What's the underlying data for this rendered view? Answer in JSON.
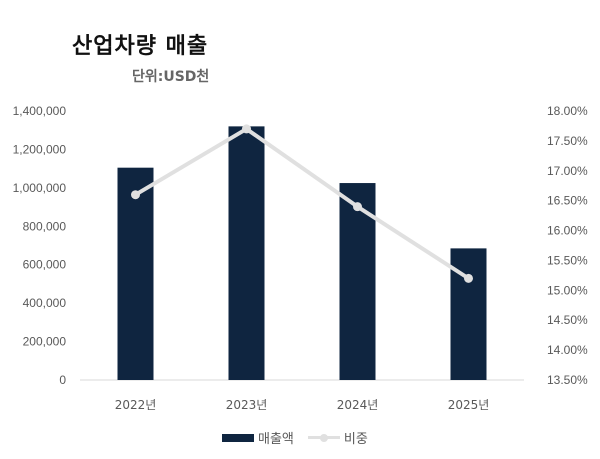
{
  "chart_data": {
    "type": "bar+line",
    "title": "산업차량 매출",
    "subtitle": "단위:USD천",
    "categories": [
      "2022년",
      "2023년",
      "2024년",
      "2025년"
    ],
    "series": [
      {
        "name": "매출액",
        "type": "bar",
        "axis": "left",
        "color": "#0f2540",
        "values": [
          1105000,
          1320000,
          1025000,
          685000
        ]
      },
      {
        "name": "비중",
        "type": "line",
        "axis": "right",
        "color": "#e0e0e0",
        "values": [
          16.6,
          17.7,
          16.4,
          15.2
        ]
      }
    ],
    "left_axis": {
      "ylim": [
        0,
        1400000
      ],
      "ticks": [
        "0",
        "200,000",
        "400,000",
        "600,000",
        "800,000",
        "1,000,000",
        "1,200,000",
        "1,400,000"
      ]
    },
    "right_axis": {
      "ylim": [
        13.5,
        18.0
      ],
      "ticks": [
        "13.50%",
        "14.00%",
        "14.50%",
        "15.00%",
        "15.50%",
        "16.00%",
        "16.50%",
        "17.00%",
        "17.50%",
        "18.00%"
      ]
    },
    "grid": false,
    "legend_position": "bottom"
  },
  "header": {
    "title": "산업차량 매출",
    "subtitle": "단위:USD천"
  },
  "legend": {
    "bar_label": "매출액",
    "line_label": "비중"
  }
}
